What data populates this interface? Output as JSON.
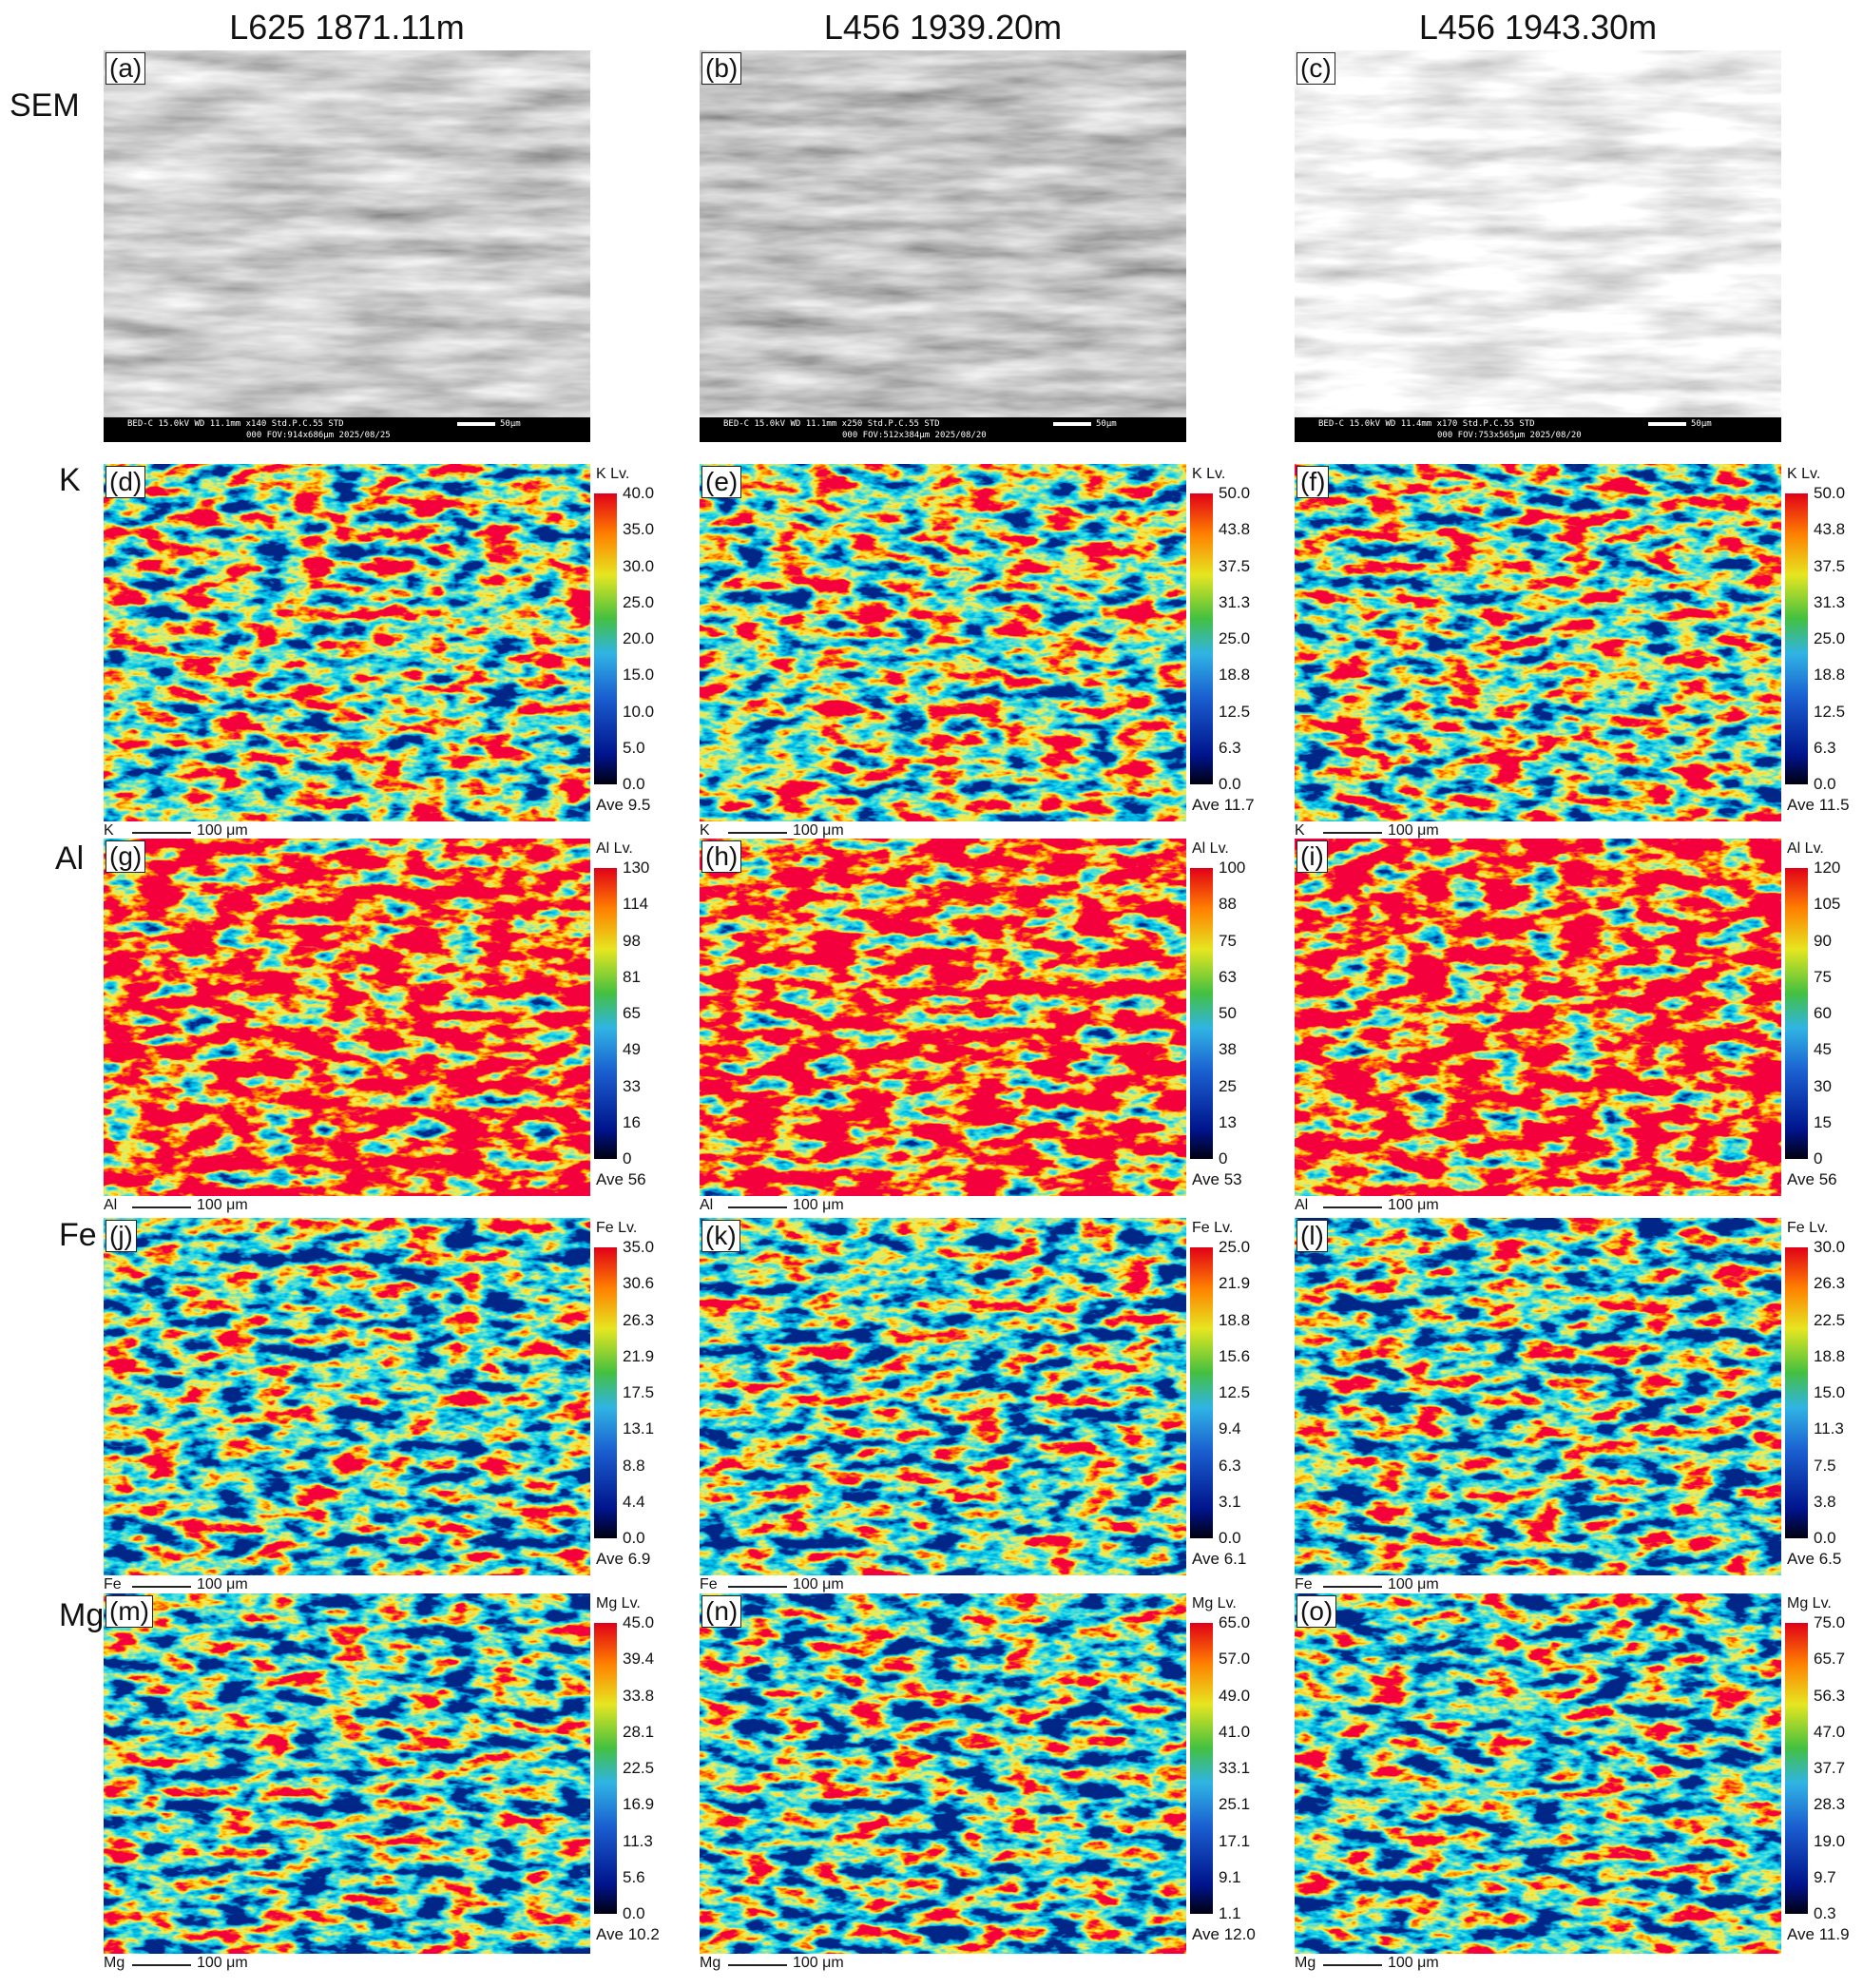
{
  "columns": [
    "L625 1871.11m",
    "L456 1939.20m",
    "L456 1943.30m"
  ],
  "rows": [
    "SEM",
    "K",
    "Al",
    "Fe",
    "Mg"
  ],
  "panels": [
    {
      "letter": "(a)",
      "info_line1": "BED-C  15.0kV  WD 11.1mm  x140  Std.P.C.55  STD",
      "info_line2": "000  FOV:914x686μm  2025/08/25",
      "scale": "50μm"
    },
    {
      "letter": "(b)",
      "info_line1": "BED-C  15.0kV  WD 11.1mm  x250  Std.P.C.55  STD",
      "info_line2": "000  FOV:512x384μm  2025/08/20",
      "scale": "50μm"
    },
    {
      "letter": "(c)",
      "info_line1": "BED-C  15.0kV  WD 11.4mm  x170  Std.P.C.55  STD",
      "info_line2": "000  FOV:753x565μm  2025/08/20",
      "scale": "50μm"
    },
    {
      "letter": "(d)",
      "legend_title": "K Lv.",
      "ticks": [
        "40.0",
        "35.0",
        "30.0",
        "25.0",
        "20.0",
        "15.0",
        "10.0",
        "5.0",
        "0.0"
      ],
      "average": "Ave 9.5",
      "element": "K",
      "scale": "100 μm"
    },
    {
      "letter": "(e)",
      "legend_title": "K Lv.",
      "ticks": [
        "50.0",
        "43.8",
        "37.5",
        "31.3",
        "25.0",
        "18.8",
        "12.5",
        "6.3",
        "0.0"
      ],
      "average": "Ave 11.7",
      "element": "K",
      "scale": "100 μm"
    },
    {
      "letter": "(f)",
      "legend_title": "K Lv.",
      "ticks": [
        "50.0",
        "43.8",
        "37.5",
        "31.3",
        "25.0",
        "18.8",
        "12.5",
        "6.3",
        "0.0"
      ],
      "average": "Ave 11.5",
      "element": "K",
      "scale": "100 μm"
    },
    {
      "letter": "(g)",
      "legend_title": "Al Lv.",
      "ticks": [
        "130",
        "114",
        "98",
        "81",
        "65",
        "49",
        "33",
        "16",
        "0"
      ],
      "average": "Ave 56",
      "element": "Al",
      "scale": "100 μm"
    },
    {
      "letter": "(h)",
      "legend_title": "Al Lv.",
      "ticks": [
        "100",
        "88",
        "75",
        "63",
        "50",
        "38",
        "25",
        "13",
        "0"
      ],
      "average": "Ave 53",
      "element": "Al",
      "scale": "100 μm"
    },
    {
      "letter": "(i)",
      "legend_title": "Al Lv.",
      "ticks": [
        "120",
        "105",
        "90",
        "75",
        "60",
        "45",
        "30",
        "15",
        "0"
      ],
      "average": "Ave 56",
      "element": "Al",
      "scale": "100 μm"
    },
    {
      "letter": "(j)",
      "legend_title": "Fe Lv.",
      "ticks": [
        "35.0",
        "30.6",
        "26.3",
        "21.9",
        "17.5",
        "13.1",
        "8.8",
        "4.4",
        "0.0"
      ],
      "average": "Ave 6.9",
      "element": "Fe",
      "scale": "100 μm"
    },
    {
      "letter": "(k)",
      "legend_title": "Fe Lv.",
      "ticks": [
        "25.0",
        "21.9",
        "18.8",
        "15.6",
        "12.5",
        "9.4",
        "6.3",
        "3.1",
        "0.0"
      ],
      "average": "Ave 6.1",
      "element": "Fe",
      "scale": "100 μm"
    },
    {
      "letter": "(l)",
      "legend_title": "Fe Lv.",
      "ticks": [
        "30.0",
        "26.3",
        "22.5",
        "18.8",
        "15.0",
        "11.3",
        "7.5",
        "3.8",
        "0.0"
      ],
      "average": "Ave 6.5",
      "element": "Fe",
      "scale": "100 μm"
    },
    {
      "letter": "(m)",
      "legend_title": "Mg Lv.",
      "ticks": [
        "45.0",
        "39.4",
        "33.8",
        "28.1",
        "22.5",
        "16.9",
        "11.3",
        "5.6",
        "0.0"
      ],
      "average": "Ave 10.2",
      "element": "Mg",
      "scale": "100 μm"
    },
    {
      "letter": "(n)",
      "legend_title": "Mg Lv.",
      "ticks": [
        "65.0",
        "57.0",
        "49.0",
        "41.0",
        "33.1",
        "25.1",
        "17.1",
        "9.1",
        "1.1"
      ],
      "average": "Ave 12.0",
      "element": "Mg",
      "scale": "100 μm"
    },
    {
      "letter": "(o)",
      "legend_title": "Mg Lv.",
      "ticks": [
        "75.0",
        "65.7",
        "56.3",
        "47.0",
        "37.7",
        "28.3",
        "19.0",
        "9.7",
        "0.3"
      ],
      "average": "Ave 11.9",
      "element": "Mg",
      "scale": "100 μm"
    }
  ]
}
